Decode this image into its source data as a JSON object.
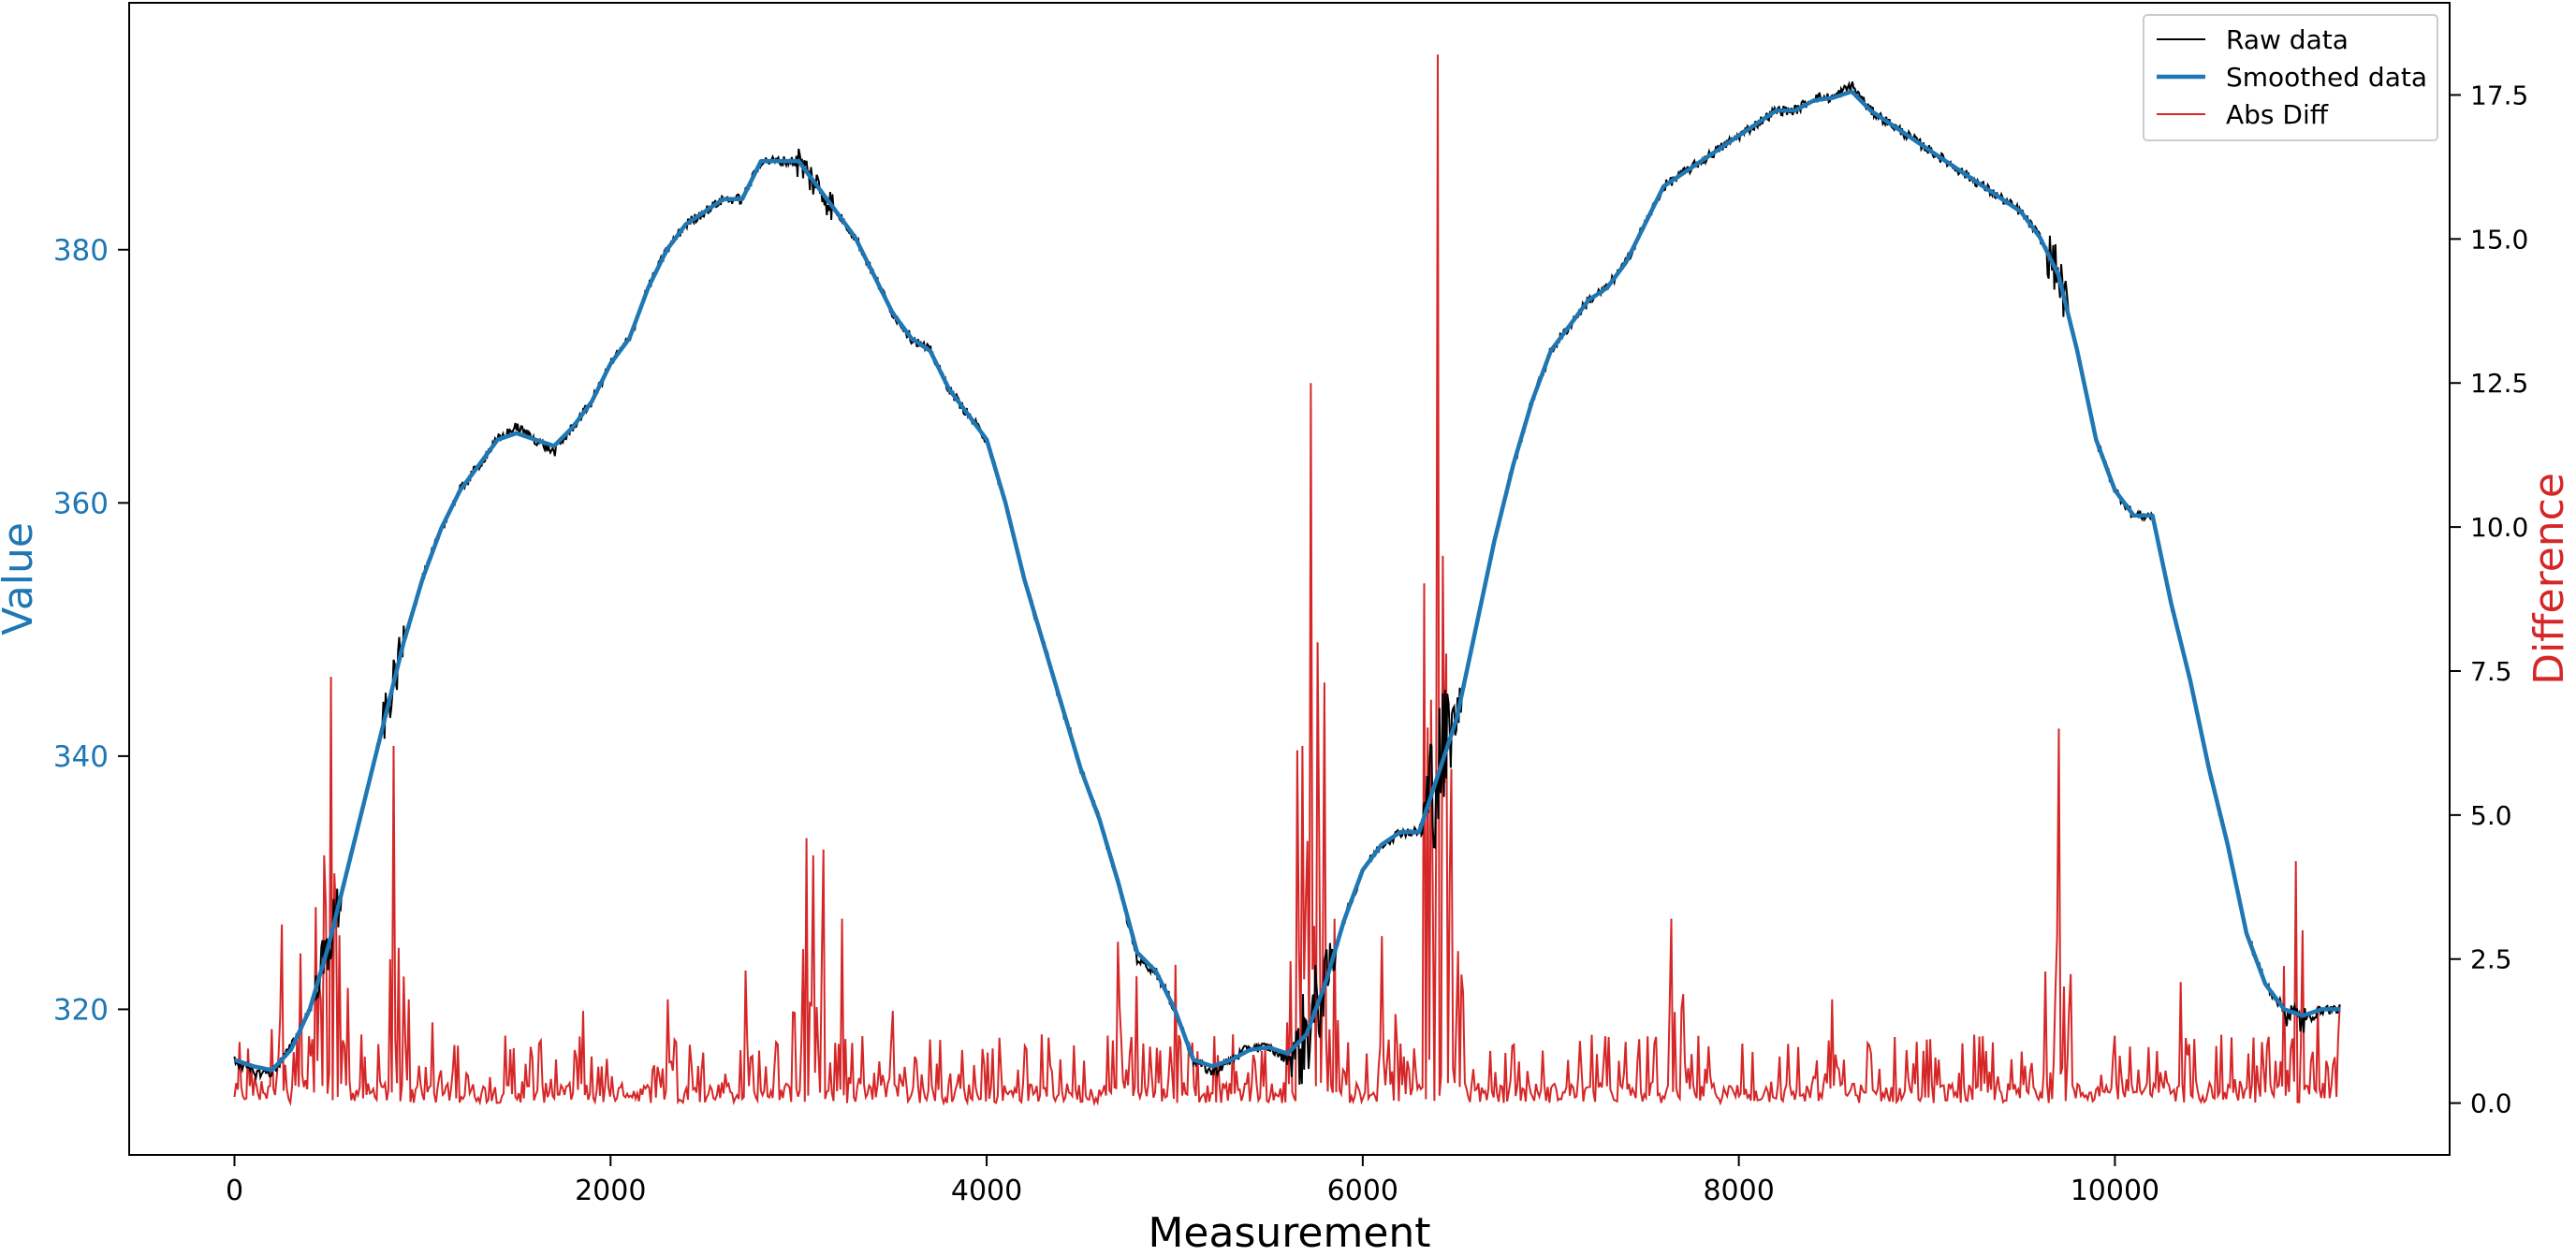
{
  "chart_data": {
    "type": "line",
    "xlabel": "Measurement",
    "ylabel_left": "Value",
    "ylabel_right": "Difference",
    "xlim": [
      -560,
      11780
    ],
    "ylim_left": [
      308.5,
      399.5
    ],
    "ylim_right": [
      -0.9,
      19.1
    ],
    "x_ticks": [
      0,
      2000,
      4000,
      6000,
      8000,
      10000
    ],
    "x_tick_labels": [
      "0",
      "2000",
      "4000",
      "6000",
      "8000",
      "10000"
    ],
    "y_left_ticks": [
      320,
      340,
      360,
      380
    ],
    "y_left_tick_labels": [
      "320",
      "340",
      "360",
      "380"
    ],
    "y_right_ticks": [
      0.0,
      2.5,
      5.0,
      7.5,
      10.0,
      12.5,
      15.0,
      17.5
    ],
    "y_right_tick_labels": [
      "0.0",
      "2.5",
      "5.0",
      "7.5",
      "10.0",
      "12.5",
      "15.0",
      "17.5"
    ],
    "grid": false,
    "legend_position": "top-right",
    "colors": {
      "raw": "#000000",
      "smoothed": "#1f77b4",
      "absdiff": "#d62728",
      "left_axis": "#1f77b4",
      "right_axis": "#d62728"
    },
    "series": [
      {
        "name": "Raw data",
        "axis": "left",
        "style": "thin-noisy",
        "x": [
          0,
          100,
          200,
          300,
          400,
          500,
          600,
          700,
          800,
          900,
          1000,
          1100,
          1200,
          1300,
          1400,
          1500,
          1600,
          1700,
          1800,
          1900,
          2000,
          2100,
          2200,
          2300,
          2400,
          2500,
          2600,
          2700,
          2800,
          2900,
          3000,
          3100,
          3200,
          3300,
          3400,
          3500,
          3600,
          3700,
          3800,
          3900,
          4000,
          4100,
          4200,
          4300,
          4400,
          4500,
          4600,
          4700,
          4800,
          4900,
          5000,
          5100,
          5200,
          5300,
          5400,
          5500,
          5600,
          5700,
          5800,
          5900,
          6000,
          6100,
          6200,
          6300,
          6400,
          6500,
          6600,
          6700,
          6800,
          6900,
          7000,
          7100,
          7200,
          7300,
          7400,
          7500,
          7600,
          7700,
          7800,
          7900,
          8000,
          8100,
          8200,
          8300,
          8400,
          8500,
          8600,
          8700,
          8800,
          8900,
          9000,
          9100,
          9200,
          9300,
          9400,
          9500,
          9600,
          9700,
          9800,
          9900,
          10000,
          10100,
          10200,
          10300,
          10400,
          10500,
          10600,
          10700,
          10800,
          10900,
          11000,
          11100,
          11200
        ],
        "values": [
          316,
          315,
          315,
          317,
          320,
          325,
          331,
          337,
          343,
          349,
          354,
          358,
          361,
          363,
          365,
          366,
          365,
          364,
          366,
          368,
          371,
          373,
          377,
          380,
          382,
          383,
          384,
          384,
          387,
          387,
          387,
          385,
          383,
          381,
          378,
          375,
          373,
          372,
          369,
          367,
          365,
          360,
          354,
          349,
          344,
          339,
          335,
          330,
          324,
          323,
          320,
          316,
          315,
          316,
          317,
          317,
          316,
          318,
          322,
          327,
          331,
          333,
          334,
          334,
          339,
          343,
          350,
          357,
          363,
          368,
          372,
          374,
          376,
          377,
          379,
          382,
          385,
          386,
          387,
          388,
          389,
          390,
          391,
          391,
          392,
          392,
          393,
          391,
          390,
          389,
          388,
          387,
          386,
          385,
          384,
          383,
          381,
          378,
          372,
          365,
          361,
          359,
          359,
          352,
          346,
          339,
          333,
          326,
          322,
          320,
          319,
          320,
          320
        ]
      },
      {
        "name": "Smoothed data",
        "axis": "left",
        "style": "thick",
        "x": [
          0,
          100,
          200,
          300,
          400,
          500,
          600,
          700,
          800,
          900,
          1000,
          1100,
          1200,
          1300,
          1400,
          1500,
          1600,
          1700,
          1800,
          1900,
          2000,
          2100,
          2200,
          2300,
          2400,
          2500,
          2600,
          2700,
          2800,
          2900,
          3000,
          3100,
          3200,
          3300,
          3400,
          3500,
          3600,
          3700,
          3800,
          3900,
          4000,
          4100,
          4200,
          4300,
          4400,
          4500,
          4600,
          4700,
          4800,
          4900,
          5000,
          5100,
          5200,
          5300,
          5400,
          5500,
          5600,
          5700,
          5800,
          5900,
          6000,
          6100,
          6200,
          6300,
          6400,
          6500,
          6600,
          6700,
          6800,
          6900,
          7000,
          7100,
          7200,
          7300,
          7400,
          7500,
          7600,
          7700,
          7800,
          7900,
          8000,
          8100,
          8200,
          8300,
          8400,
          8500,
          8600,
          8700,
          8800,
          8900,
          9000,
          9100,
          9200,
          9300,
          9400,
          9500,
          9600,
          9700,
          9800,
          9900,
          10000,
          10100,
          10200,
          10300,
          10400,
          10500,
          10600,
          10700,
          10800,
          10900,
          11000,
          11100,
          11200
        ],
        "values": [
          316,
          315.5,
          315.2,
          316.8,
          320,
          325,
          331,
          337,
          343,
          349,
          354,
          358,
          361,
          363,
          365,
          365.5,
          365,
          364.5,
          366,
          368,
          371,
          373,
          377,
          380,
          382,
          383,
          384,
          384,
          387,
          387,
          387,
          385,
          383,
          381,
          378,
          375,
          373,
          372,
          369,
          367,
          365,
          360,
          354,
          349,
          344,
          339,
          335,
          330,
          324.5,
          323,
          320,
          316,
          315.5,
          316,
          316.8,
          317,
          316.5,
          318,
          322,
          327,
          331,
          333,
          334,
          334,
          338.5,
          343,
          350,
          357,
          363,
          368,
          372,
          374,
          376,
          377,
          379,
          382,
          385,
          386,
          387,
          388,
          389,
          390,
          391,
          391,
          391.8,
          392,
          392.5,
          391,
          390,
          389,
          388,
          387,
          386,
          385,
          384,
          383,
          381,
          378,
          372,
          365,
          361,
          359,
          359,
          352,
          346,
          339,
          333,
          326,
          322,
          320,
          319.5,
          320,
          320
        ]
      },
      {
        "name": "Abs Diff",
        "axis": "right",
        "style": "thin-spiky",
        "baseline_level": 0.45,
        "spikes": [
          {
            "x": 250,
            "value": 3.1
          },
          {
            "x": 350,
            "value": 2.6
          },
          {
            "x": 430,
            "value": 3.4
          },
          {
            "x": 480,
            "value": 4.3
          },
          {
            "x": 510,
            "value": 7.4
          },
          {
            "x": 540,
            "value": 3.3
          },
          {
            "x": 600,
            "value": 2.0
          },
          {
            "x": 850,
            "value": 6.2
          },
          {
            "x": 1050,
            "value": 1.4
          },
          {
            "x": 1850,
            "value": 1.6
          },
          {
            "x": 2300,
            "value": 1.8
          },
          {
            "x": 2720,
            "value": 2.3
          },
          {
            "x": 3040,
            "value": 4.6
          },
          {
            "x": 3080,
            "value": 4.3
          },
          {
            "x": 3130,
            "value": 4.4
          },
          {
            "x": 3230,
            "value": 3.2
          },
          {
            "x": 3500,
            "value": 1.6
          },
          {
            "x": 4700,
            "value": 2.8
          },
          {
            "x": 4800,
            "value": 2.2
          },
          {
            "x": 5000,
            "value": 2.4
          },
          {
            "x": 5600,
            "value": 1.4
          },
          {
            "x": 5680,
            "value": 6.2
          },
          {
            "x": 5720,
            "value": 12.5
          },
          {
            "x": 5760,
            "value": 8.0
          },
          {
            "x": 5800,
            "value": 7.3
          },
          {
            "x": 5850,
            "value": 3.2
          },
          {
            "x": 6100,
            "value": 2.9
          },
          {
            "x": 6360,
            "value": 7.0
          },
          {
            "x": 6400,
            "value": 18.2
          },
          {
            "x": 6430,
            "value": 9.5
          },
          {
            "x": 6470,
            "value": 5.8
          },
          {
            "x": 7640,
            "value": 3.2
          },
          {
            "x": 8500,
            "value": 1.8
          },
          {
            "x": 9700,
            "value": 6.5
          },
          {
            "x": 10350,
            "value": 2.1
          },
          {
            "x": 10960,
            "value": 4.2
          },
          {
            "x": 11000,
            "value": 3.0
          },
          {
            "x": 11200,
            "value": 1.7
          }
        ]
      }
    ]
  }
}
